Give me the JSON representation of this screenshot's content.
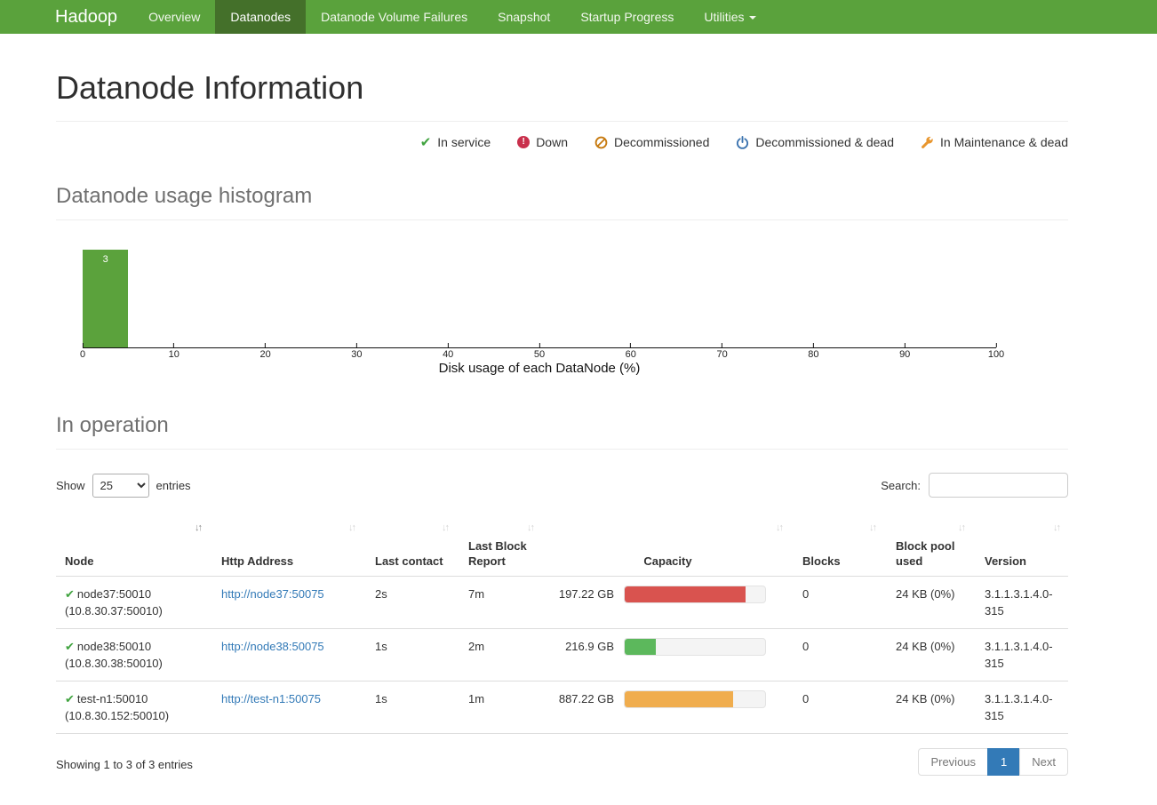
{
  "navbar": {
    "brand": "Hadoop",
    "items": [
      {
        "label": "Overview"
      },
      {
        "label": "Datanodes"
      },
      {
        "label": "Datanode Volume Failures"
      },
      {
        "label": "Snapshot"
      },
      {
        "label": "Startup Progress"
      },
      {
        "label": "Utilities"
      }
    ],
    "active_item": "Datanodes",
    "colors": {
      "bar": "#5aa23c",
      "active_bg": "#44702a"
    }
  },
  "page_title": "Datanode Information",
  "legend": [
    {
      "label": "In service",
      "icon": "check-icon",
      "color": "#40a33f"
    },
    {
      "label": "Down",
      "icon": "exclamation-circle-icon",
      "color": "#c9304c"
    },
    {
      "label": "Decommissioned",
      "icon": "ban-icon",
      "color": "#c77b11"
    },
    {
      "label": "Decommissioned & dead",
      "icon": "power-icon",
      "color": "#3b73af"
    },
    {
      "label": "In Maintenance & dead",
      "icon": "wrench-icon",
      "color": "#e8962e"
    }
  ],
  "sections": {
    "histogram_title": "Datanode usage histogram",
    "operation_title": "In operation"
  },
  "chart_data": {
    "type": "bar",
    "title": "Datanode usage histogram",
    "xlabel": "Disk usage of each DataNode (%)",
    "xlim": [
      0,
      100
    ],
    "x_ticks": [
      0,
      10,
      20,
      30,
      40,
      50,
      60,
      70,
      80,
      90,
      100
    ],
    "bins": [
      {
        "range": [
          0,
          5
        ],
        "count": 3
      }
    ],
    "bar_color": "#5ba23c"
  },
  "table": {
    "controls": {
      "show_label": "Show",
      "page_length": "25",
      "entries_label": "entries",
      "search_label": "Search:"
    },
    "columns": [
      "Node",
      "Http Address",
      "Last contact",
      "Last Block Report",
      "Capacity",
      "Blocks",
      "Block pool used",
      "Version"
    ],
    "rows": [
      {
        "state": "in-service",
        "node": "node37:50010",
        "address": "(10.8.30.37:50010)",
        "http_address": "http://node37:50075",
        "last_contact": "2s",
        "last_block_report": "7m",
        "capacity": "197.22 GB",
        "used_pct": 86,
        "bar_color": "#d9534f",
        "blocks": "0",
        "block_pool_used": "24 KB (0%)",
        "version": "3.1.1.3.1.4.0-315"
      },
      {
        "state": "in-service",
        "node": "node38:50010",
        "address": "(10.8.30.38:50010)",
        "http_address": "http://node38:50075",
        "last_contact": "1s",
        "last_block_report": "2m",
        "capacity": "216.9 GB",
        "used_pct": 22,
        "bar_color": "#5cb85c",
        "blocks": "0",
        "block_pool_used": "24 KB (0%)",
        "version": "3.1.1.3.1.4.0-315"
      },
      {
        "state": "in-service",
        "node": "test-n1:50010",
        "address": "(10.8.30.152:50010)",
        "http_address": "http://test-n1:50075",
        "last_contact": "1s",
        "last_block_report": "1m",
        "capacity": "887.22 GB",
        "used_pct": 77,
        "bar_color": "#f0ad4e",
        "blocks": "0",
        "block_pool_used": "24 KB (0%)",
        "version": "3.1.1.3.1.4.0-315"
      }
    ],
    "summary": "Showing 1 to 3 of 3 entries",
    "pagination": {
      "previous": "Previous",
      "current": "1",
      "next": "Next"
    }
  }
}
